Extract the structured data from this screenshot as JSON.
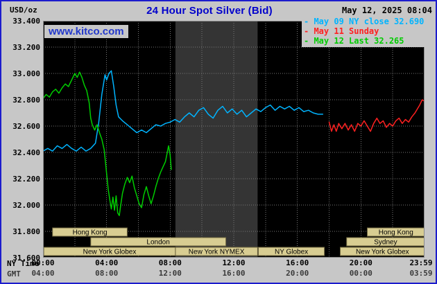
{
  "header": {
    "unit": "USD/oz",
    "title": "24 Hour Spot Silver (Bid)",
    "datetime": "May 12, 2025 08:04",
    "watermark": "www.kitco.com"
  },
  "legend": {
    "marker": "-",
    "items": [
      {
        "id": "may09",
        "label": "May 09 NY close 32.690",
        "color": "#00B4FF"
      },
      {
        "id": "may11",
        "label": "May 11 Sunday",
        "color": "#FF2020"
      },
      {
        "id": "may12",
        "label": "May 12 Last 32.265",
        "color": "#00CC00"
      }
    ]
  },
  "axis": {
    "ny_label": "NY Time",
    "gmt_label": "GMT",
    "x_ticks": [
      {
        "t": 0,
        "ny": "00:00",
        "gmt": "04:00"
      },
      {
        "t": 4,
        "ny": "04:00",
        "gmt": "08:00"
      },
      {
        "t": 8,
        "ny": "08:00",
        "gmt": "12:00"
      },
      {
        "t": 12,
        "ny": "12:00",
        "gmt": "16:00"
      },
      {
        "t": 16,
        "ny": "16:00",
        "gmt": "20:00"
      },
      {
        "t": 20,
        "ny": "20:00",
        "gmt": "00:00"
      },
      {
        "t": 23.983,
        "ny": "23:59",
        "gmt": "03:59"
      }
    ],
    "y_ticks": [
      {
        "v": 33.4,
        "label": "33.400"
      },
      {
        "v": 33.2,
        "label": "33.200"
      },
      {
        "v": 33.0,
        "label": "33.000"
      },
      {
        "v": 32.8,
        "label": "32.800"
      },
      {
        "v": 32.6,
        "label": "32.600"
      },
      {
        "v": 32.4,
        "label": "32.400"
      },
      {
        "v": 32.2,
        "label": "32.200"
      },
      {
        "v": 32.0,
        "label": "32.000"
      },
      {
        "v": 31.8,
        "label": "31.800"
      },
      {
        "v": 31.6,
        "label": "31.600"
      }
    ]
  },
  "chart_data": {
    "type": "line",
    "title": "24 Hour Spot Silver (Bid)",
    "unit": "USD/oz",
    "x_hours_range": [
      0,
      24
    ],
    "ylim": [
      31.6,
      33.4
    ],
    "grid": {
      "x_step_hours": 2,
      "y_step": 0.2,
      "on": true
    },
    "highlight_band_hours": [
      8.33,
      13.5
    ],
    "colors": {
      "plot_bg": "#000000",
      "band": "#343434",
      "grid": "#787878",
      "plot_border": "#8a8a8a"
    },
    "series": [
      {
        "id": "may09",
        "name": "May 09 NY close",
        "close": 32.69,
        "color": "#00B4FF",
        "points": [
          [
            0,
            32.41
          ],
          [
            0.3,
            32.43
          ],
          [
            0.6,
            32.41
          ],
          [
            0.9,
            32.45
          ],
          [
            1.2,
            32.43
          ],
          [
            1.5,
            32.46
          ],
          [
            1.8,
            32.43
          ],
          [
            2.1,
            32.41
          ],
          [
            2.4,
            32.44
          ],
          [
            2.7,
            32.41
          ],
          [
            3.0,
            32.43
          ],
          [
            3.3,
            32.47
          ],
          [
            3.5,
            32.62
          ],
          [
            3.7,
            32.84
          ],
          [
            3.9,
            32.99
          ],
          [
            4.0,
            32.95
          ],
          [
            4.15,
            33.0
          ],
          [
            4.3,
            33.02
          ],
          [
            4.45,
            32.9
          ],
          [
            4.6,
            32.76
          ],
          [
            4.75,
            32.67
          ],
          [
            5.0,
            32.64
          ],
          [
            5.3,
            32.61
          ],
          [
            5.6,
            32.58
          ],
          [
            5.9,
            32.55
          ],
          [
            6.2,
            32.57
          ],
          [
            6.5,
            32.55
          ],
          [
            6.8,
            32.58
          ],
          [
            7.1,
            32.61
          ],
          [
            7.4,
            32.6
          ],
          [
            7.7,
            32.62
          ],
          [
            8.0,
            32.63
          ],
          [
            8.3,
            32.65
          ],
          [
            8.6,
            32.63
          ],
          [
            8.9,
            32.67
          ],
          [
            9.2,
            32.7
          ],
          [
            9.5,
            32.67
          ],
          [
            9.8,
            32.72
          ],
          [
            10.1,
            32.74
          ],
          [
            10.4,
            32.69
          ],
          [
            10.7,
            32.66
          ],
          [
            11.0,
            32.72
          ],
          [
            11.3,
            32.75
          ],
          [
            11.6,
            32.7
          ],
          [
            11.9,
            32.73
          ],
          [
            12.2,
            32.69
          ],
          [
            12.5,
            32.72
          ],
          [
            12.8,
            32.67
          ],
          [
            13.1,
            32.7
          ],
          [
            13.4,
            32.73
          ],
          [
            13.7,
            32.71
          ],
          [
            14.0,
            32.74
          ],
          [
            14.3,
            32.76
          ],
          [
            14.6,
            32.72
          ],
          [
            14.9,
            32.75
          ],
          [
            15.2,
            32.73
          ],
          [
            15.5,
            32.75
          ],
          [
            15.8,
            32.72
          ],
          [
            16.1,
            32.74
          ],
          [
            16.4,
            32.71
          ],
          [
            16.7,
            32.72
          ],
          [
            17.0,
            32.7
          ],
          [
            17.3,
            32.69
          ],
          [
            17.6,
            32.69
          ]
        ]
      },
      {
        "id": "may11",
        "name": "May 11 Sunday",
        "color": "#FF2020",
        "points": [
          [
            18.0,
            32.63
          ],
          [
            18.15,
            32.56
          ],
          [
            18.3,
            32.61
          ],
          [
            18.45,
            32.56
          ],
          [
            18.6,
            32.62
          ],
          [
            18.8,
            32.58
          ],
          [
            19.0,
            32.62
          ],
          [
            19.2,
            32.57
          ],
          [
            19.4,
            32.61
          ],
          [
            19.6,
            32.56
          ],
          [
            19.8,
            32.62
          ],
          [
            20.0,
            32.6
          ],
          [
            20.2,
            32.64
          ],
          [
            20.4,
            32.6
          ],
          [
            20.6,
            32.56
          ],
          [
            20.8,
            32.62
          ],
          [
            21.0,
            32.66
          ],
          [
            21.2,
            32.62
          ],
          [
            21.4,
            32.64
          ],
          [
            21.6,
            32.59
          ],
          [
            21.8,
            32.62
          ],
          [
            22.0,
            32.6
          ],
          [
            22.2,
            32.64
          ],
          [
            22.4,
            32.66
          ],
          [
            22.6,
            32.62
          ],
          [
            22.8,
            32.65
          ],
          [
            23.0,
            32.63
          ],
          [
            23.2,
            32.67
          ],
          [
            23.4,
            32.7
          ],
          [
            23.55,
            32.73
          ],
          [
            23.7,
            32.76
          ],
          [
            23.85,
            32.8
          ],
          [
            23.98,
            32.79
          ]
        ]
      },
      {
        "id": "may12",
        "name": "May 12",
        "last": 32.265,
        "color": "#00CC00",
        "points": [
          [
            0,
            32.81
          ],
          [
            0.2,
            32.84
          ],
          [
            0.4,
            32.82
          ],
          [
            0.6,
            32.86
          ],
          [
            0.8,
            32.88
          ],
          [
            1.0,
            32.85
          ],
          [
            1.2,
            32.89
          ],
          [
            1.4,
            32.92
          ],
          [
            1.6,
            32.9
          ],
          [
            1.8,
            32.95
          ],
          [
            2.0,
            33.0
          ],
          [
            2.15,
            32.97
          ],
          [
            2.3,
            33.01
          ],
          [
            2.45,
            32.97
          ],
          [
            2.6,
            32.91
          ],
          [
            2.75,
            32.87
          ],
          [
            2.9,
            32.78
          ],
          [
            3.0,
            32.66
          ],
          [
            3.1,
            32.61
          ],
          [
            3.25,
            32.57
          ],
          [
            3.4,
            32.61
          ],
          [
            3.55,
            32.55
          ],
          [
            3.7,
            32.5
          ],
          [
            3.85,
            32.42
          ],
          [
            4.0,
            32.24
          ],
          [
            4.1,
            32.12
          ],
          [
            4.2,
            32.04
          ],
          [
            4.3,
            31.97
          ],
          [
            4.4,
            32.06
          ],
          [
            4.5,
            31.96
          ],
          [
            4.6,
            32.07
          ],
          [
            4.7,
            31.94
          ],
          [
            4.8,
            31.92
          ],
          [
            4.9,
            32.01
          ],
          [
            5.0,
            32.09
          ],
          [
            5.15,
            32.16
          ],
          [
            5.3,
            32.21
          ],
          [
            5.45,
            32.17
          ],
          [
            5.6,
            32.22
          ],
          [
            5.75,
            32.13
          ],
          [
            5.9,
            32.07
          ],
          [
            6.05,
            32.01
          ],
          [
            6.2,
            31.98
          ],
          [
            6.35,
            32.08
          ],
          [
            6.5,
            32.14
          ],
          [
            6.65,
            32.07
          ],
          [
            6.8,
            32.01
          ],
          [
            6.95,
            32.07
          ],
          [
            7.1,
            32.14
          ],
          [
            7.25,
            32.2
          ],
          [
            7.4,
            32.25
          ],
          [
            7.55,
            32.29
          ],
          [
            7.7,
            32.33
          ],
          [
            7.8,
            32.39
          ],
          [
            7.9,
            32.45
          ],
          [
            8.0,
            32.38
          ],
          [
            8.07,
            32.27
          ]
        ]
      }
    ],
    "sessions": {
      "fill": "#D8CD92",
      "border": "#6F6740",
      "text_color": "#000000",
      "rows": [
        [
          {
            "label": "Hong Kong",
            "start": 0.6,
            "end": 5.3
          },
          {
            "label": "Hong Kong",
            "start": 20.4,
            "end": 24
          }
        ],
        [
          {
            "label": "London",
            "start": 3.0,
            "end": 11.5
          },
          {
            "label": "Sydney",
            "start": 19.1,
            "end": 24
          }
        ],
        [
          {
            "label": "New York Globex",
            "start": 0.05,
            "end": 8.33
          },
          {
            "label": "New York NYMEX",
            "start": 8.33,
            "end": 13.5
          },
          {
            "label": "NY Globex",
            "start": 13.55,
            "end": 17.7
          },
          {
            "label": "New York Globex",
            "start": 18.7,
            "end": 24
          }
        ]
      ]
    }
  }
}
